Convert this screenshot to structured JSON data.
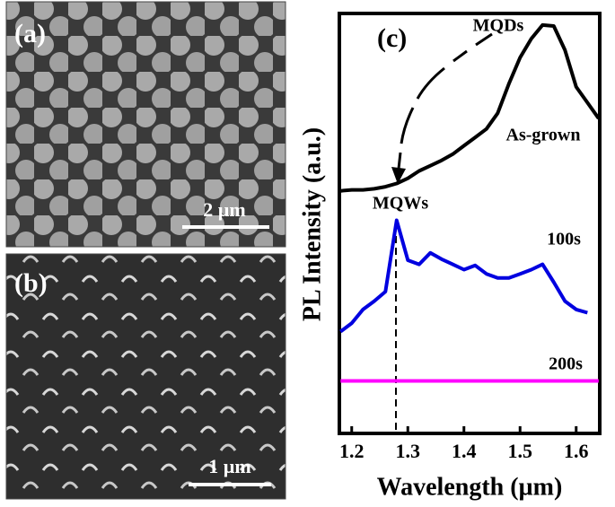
{
  "panels": [
    {
      "label": "(a)",
      "scale_bar": "2 µm"
    },
    {
      "label": "(b)",
      "scale_bar": "1 µm"
    }
  ],
  "chart_data": {
    "type": "line",
    "label": "(c)",
    "x_label": "Wavelength (µm)",
    "y_label": "PL Intensity (a.u.)",
    "x": [
      1.18,
      1.2,
      1.22,
      1.24,
      1.26,
      1.28,
      1.3,
      1.32,
      1.34,
      1.36,
      1.38,
      1.4,
      1.42,
      1.44,
      1.46,
      1.48,
      1.5,
      1.52,
      1.54,
      1.56,
      1.58,
      1.6,
      1.62,
      1.64
    ],
    "series": [
      {
        "name": "As-grown",
        "color": "#000000",
        "values": [
          2.31,
          2.32,
          2.32,
          2.33,
          2.35,
          2.38,
          2.43,
          2.5,
          2.55,
          2.6,
          2.66,
          2.74,
          2.82,
          2.9,
          3.05,
          3.33,
          3.58,
          3.76,
          3.89,
          3.88,
          3.65,
          3.3,
          3.15,
          3.0
        ]
      },
      {
        "name": "100s",
        "color": "#0000e0",
        "values": [
          0.97,
          1.05,
          1.18,
          1.26,
          1.35,
          2.03,
          1.65,
          1.61,
          1.72,
          1.66,
          1.61,
          1.56,
          1.6,
          1.52,
          1.48,
          1.48,
          1.52,
          1.56,
          1.61,
          1.44,
          1.26,
          1.18,
          1.15,
          null
        ]
      },
      {
        "name": "200s",
        "color": "#ff00ff",
        "values": [
          0.5,
          0.5,
          0.5,
          0.5,
          0.5,
          0.5,
          0.5,
          0.5,
          0.5,
          0.5,
          0.5,
          0.5,
          0.5,
          0.5,
          0.5,
          0.5,
          0.5,
          0.5,
          0.5,
          0.5,
          0.5,
          0.5,
          0.5,
          0.5
        ]
      }
    ],
    "annotations": [
      "MQDs",
      "MQWs"
    ],
    "xlim": [
      1.178,
      1.642
    ],
    "xticks": [
      1.2,
      1.3,
      1.4,
      1.5,
      1.6
    ],
    "ylim": [
      0,
      4
    ]
  }
}
